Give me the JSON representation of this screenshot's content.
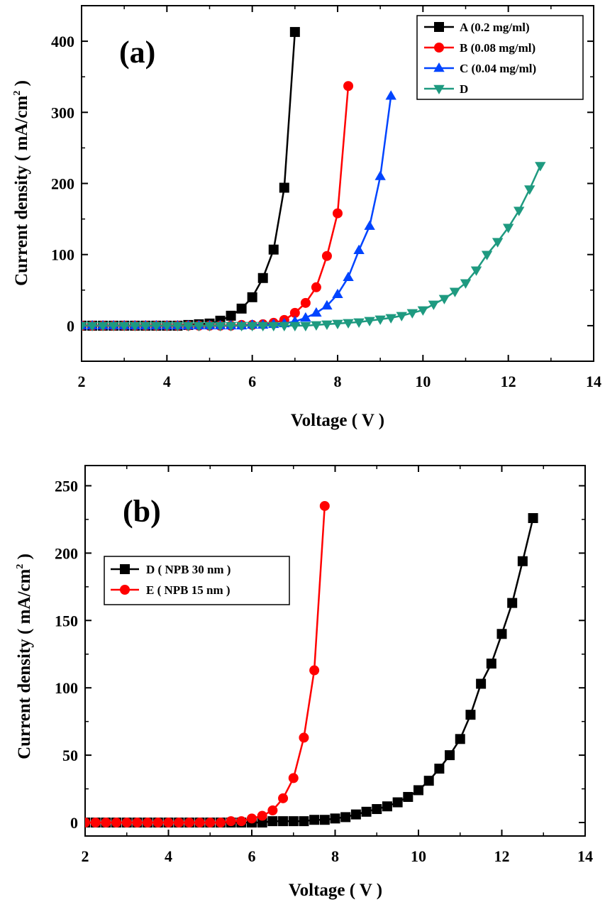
{
  "chart_data": [
    {
      "type": "line",
      "panel_label": "(a)",
      "xlabel": "Voltage ( V )",
      "ylabel": "Current density ( mA/cm",
      "ylabel_sup": "2",
      "ylabel_close": " )",
      "xlim": [
        2,
        14
      ],
      "ylim": [
        -50,
        450
      ],
      "xticks": [
        "2",
        "4",
        "6",
        "8",
        "10",
        "12",
        "14"
      ],
      "yticks": [
        "0",
        "100",
        "200",
        "300",
        "400"
      ],
      "legend_position": "top-right",
      "series": [
        {
          "name": "A (0.2 mg/ml)",
          "color": "#000000",
          "marker": "square",
          "x": [
            2.0,
            2.25,
            2.5,
            2.75,
            3.0,
            3.25,
            3.5,
            3.75,
            4.0,
            4.25,
            4.5,
            4.75,
            5.0,
            5.25,
            5.5,
            5.75,
            6.0,
            6.25,
            6.5,
            6.75,
            7.0
          ],
          "y": [
            0,
            0,
            0,
            0,
            0,
            0,
            0,
            0,
            0,
            0,
            1,
            2,
            3,
            7,
            14,
            24,
            40,
            67,
            107,
            194,
            413
          ]
        },
        {
          "name": "B (0.08 mg/ml)",
          "color": "#ff0000",
          "marker": "circle",
          "x": [
            2.0,
            2.25,
            2.5,
            2.75,
            3.0,
            3.25,
            3.5,
            3.75,
            4.0,
            4.25,
            4.5,
            4.75,
            5.0,
            5.25,
            5.5,
            5.75,
            6.0,
            6.25,
            6.5,
            6.75,
            7.0,
            7.25,
            7.5,
            7.75,
            8.0,
            8.25
          ],
          "y": [
            0,
            0,
            0,
            0,
            0,
            0,
            0,
            0,
            0,
            0,
            0,
            0,
            0,
            0,
            0,
            1,
            1,
            2,
            4,
            8,
            18,
            32,
            54,
            98,
            158,
            337
          ]
        },
        {
          "name": "C (0.04 mg/ml)",
          "color": "#0044ff",
          "marker": "triangle-up",
          "x": [
            2.0,
            2.25,
            2.5,
            2.75,
            3.0,
            3.25,
            3.5,
            3.75,
            4.0,
            4.25,
            4.5,
            4.75,
            5.0,
            5.25,
            5.5,
            5.75,
            6.0,
            6.25,
            6.5,
            6.75,
            7.0,
            7.25,
            7.5,
            7.75,
            8.0,
            8.25,
            8.5,
            8.75,
            9.0,
            9.25
          ],
          "y": [
            0,
            0,
            0,
            0,
            0,
            0,
            0,
            0,
            0,
            0,
            0,
            0,
            0,
            0,
            0,
            0,
            1,
            1,
            2,
            3,
            6,
            11,
            18,
            28,
            44,
            68,
            106,
            140,
            210,
            323
          ]
        },
        {
          "name": "D",
          "color": "#1e9a80",
          "marker": "triangle-down",
          "x": [
            2.0,
            2.25,
            2.5,
            2.75,
            3.0,
            3.25,
            3.5,
            3.75,
            4.0,
            4.25,
            4.5,
            4.75,
            5.0,
            5.25,
            5.5,
            5.75,
            6.0,
            6.25,
            6.5,
            6.75,
            7.0,
            7.25,
            7.5,
            7.75,
            8.0,
            8.25,
            8.5,
            8.75,
            9.0,
            9.25,
            9.5,
            9.75,
            10.0,
            10.25,
            10.5,
            10.75,
            11.0,
            11.25,
            11.5,
            11.75,
            12.0,
            12.25,
            12.5,
            12.75
          ],
          "y": [
            0,
            0,
            0,
            0,
            0,
            0,
            0,
            0,
            0,
            0,
            0,
            0,
            0,
            0,
            0,
            0,
            0,
            0,
            0,
            0,
            0,
            0,
            1,
            2,
            3,
            4,
            5,
            7,
            9,
            11,
            14,
            18,
            22,
            30,
            38,
            48,
            60,
            78,
            100,
            118,
            138,
            162,
            192,
            225
          ]
        }
      ]
    },
    {
      "type": "line",
      "panel_label": "(b)",
      "xlabel": "Voltage ( V )",
      "ylabel": "Current density ( mA/cm",
      "ylabel_sup": "2",
      "ylabel_close": " )",
      "xlim": [
        2,
        14
      ],
      "ylim": [
        -10,
        265
      ],
      "xticks": [
        "2",
        "4",
        "6",
        "8",
        "10",
        "12",
        "14"
      ],
      "yticks": [
        "0",
        "50",
        "100",
        "150",
        "200",
        "250"
      ],
      "legend_position": "upper-left",
      "series": [
        {
          "name": "D ( NPB 30 nm )",
          "color": "#000000",
          "marker": "square",
          "x": [
            2.0,
            2.25,
            2.5,
            2.75,
            3.0,
            3.25,
            3.5,
            3.75,
            4.0,
            4.25,
            4.5,
            4.75,
            5.0,
            5.25,
            5.5,
            5.75,
            6.0,
            6.25,
            6.5,
            6.75,
            7.0,
            7.25,
            7.5,
            7.75,
            8.0,
            8.25,
            8.5,
            8.75,
            9.0,
            9.25,
            9.5,
            9.75,
            10.0,
            10.25,
            10.5,
            10.75,
            11.0,
            11.25,
            11.5,
            11.75,
            12.0,
            12.25,
            12.5,
            12.75
          ],
          "y": [
            0,
            0,
            0,
            0,
            0,
            0,
            0,
            0,
            0,
            0,
            0,
            0,
            0,
            0,
            0,
            0,
            0,
            0,
            1,
            1,
            1,
            1,
            2,
            2,
            3,
            4,
            6,
            8,
            10,
            12,
            15,
            19,
            24,
            31,
            40,
            50,
            62,
            80,
            103,
            118,
            140,
            163,
            194,
            226
          ]
        },
        {
          "name": "E ( NPB 15 nm )",
          "color": "#ff0000",
          "marker": "circle",
          "x": [
            2.0,
            2.25,
            2.5,
            2.75,
            3.0,
            3.25,
            3.5,
            3.75,
            4.0,
            4.25,
            4.5,
            4.75,
            5.0,
            5.25,
            5.5,
            5.75,
            6.0,
            6.25,
            6.5,
            6.75,
            7.0,
            7.25,
            7.5,
            7.75
          ],
          "y": [
            0,
            0,
            0,
            0,
            0,
            0,
            0,
            0,
            0,
            0,
            0,
            0,
            0,
            0,
            1,
            1,
            3,
            5,
            9,
            18,
            33,
            63,
            113,
            235
          ]
        }
      ]
    }
  ]
}
